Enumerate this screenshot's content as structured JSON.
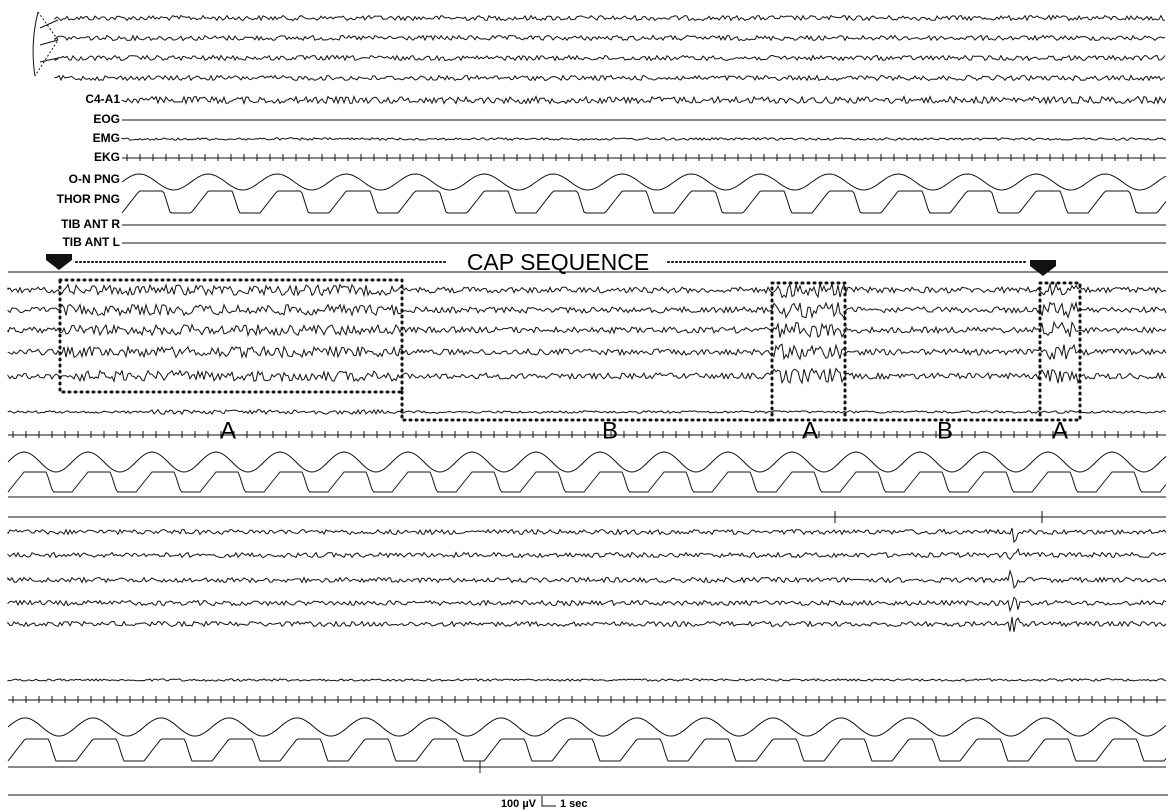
{
  "figure": {
    "channel_labels": [
      "C4-A1",
      "EOG",
      "EMG",
      "EKG",
      "O-N PNG",
      "THOR PNG",
      "TIB ANT R",
      "TIB ANT L"
    ],
    "cap_label": "CAP SEQUENCE",
    "phase_labels": [
      "A",
      "B",
      "A",
      "B",
      "A"
    ],
    "scale": {
      "amplitude": "100 µV",
      "time": "1 sec"
    }
  }
}
